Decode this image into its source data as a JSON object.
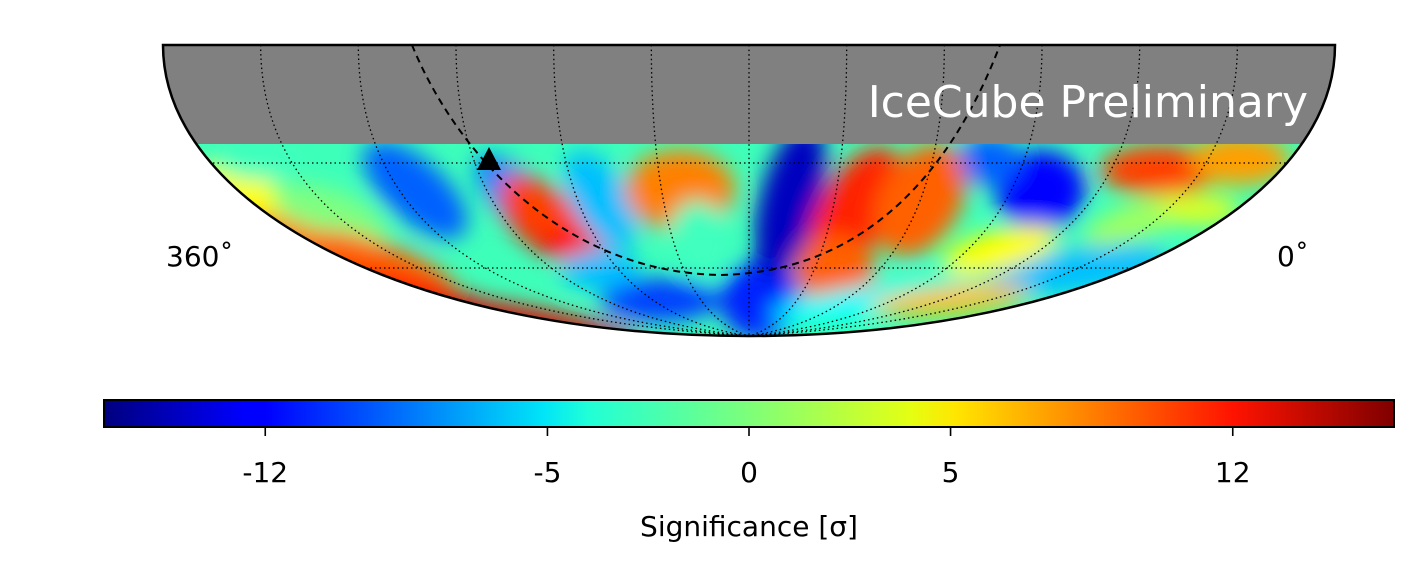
{
  "chart_data": {
    "type": "heatmap",
    "projection": "Mollweide (southern sky, equatorial)",
    "watermark": "IceCube Preliminary",
    "lon_labels": {
      "left": "360˚",
      "right": "0˚"
    },
    "declination_visible_max": -20,
    "masked_region_color": "#808080",
    "colormap": "jet",
    "colorbar": {
      "label": "Significance [σ]",
      "range": [
        -16,
        16
      ],
      "ticks": [
        {
          "value": -12,
          "label": "-12"
        },
        {
          "value": -5,
          "label": "-5"
        },
        {
          "value": 0,
          "label": "0"
        },
        {
          "value": 5,
          "label": "5"
        },
        {
          "value": 12,
          "label": "12"
        }
      ]
    },
    "hotspot_marker": {
      "shape": "triangle",
      "ra_deg": 218,
      "dec_deg": -19
    },
    "galactic_plane": "dashed"
  }
}
